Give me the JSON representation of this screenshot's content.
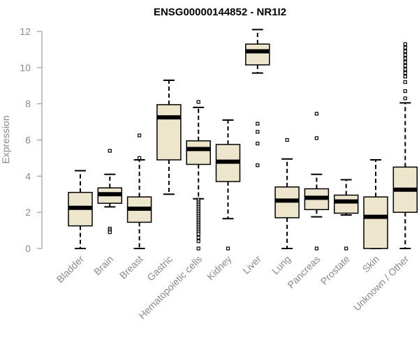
{
  "chart_data": {
    "type": "boxplot",
    "title": "ENSG00000144852 - NR1I2",
    "xlabel": "",
    "ylabel": "Expression",
    "ylim": [
      0,
      12
    ],
    "yticks": [
      0,
      2,
      4,
      6,
      8,
      10,
      12
    ],
    "grid": false,
    "colors": {
      "box_fill": "#ede6cc",
      "box_stroke": "#000000",
      "axis": "#8a8a8a"
    },
    "categories": [
      "Bladder",
      "Brain",
      "Breast",
      "Gastric",
      "Hematopoietic cells",
      "Kidney",
      "Liver",
      "Lung",
      "Pancreas",
      "Prostate",
      "Skin",
      "Unknown / Other"
    ],
    "boxes": [
      {
        "name": "Bladder",
        "min": 0,
        "q1": 1.25,
        "median": 2.25,
        "q3": 3.1,
        "max": 4.3,
        "outliers": []
      },
      {
        "name": "Brain",
        "min": 2.3,
        "q1": 2.5,
        "median": 3.0,
        "q3": 3.35,
        "max": 4.1,
        "outliers": [
          5.4,
          1.1,
          1.0,
          0.9
        ]
      },
      {
        "name": "Breast",
        "min": 0,
        "q1": 1.45,
        "median": 2.2,
        "q3": 2.85,
        "max": 4.9,
        "outliers": [
          6.25,
          5.0
        ]
      },
      {
        "name": "Gastric",
        "min": 3.0,
        "q1": 4.9,
        "median": 7.25,
        "q3": 7.95,
        "max": 9.3,
        "outliers": []
      },
      {
        "name": "Hematopoietic cells",
        "min": 2.75,
        "q1": 4.65,
        "median": 5.5,
        "q3": 5.95,
        "max": 7.8,
        "outliers": [
          8.1,
          2.7,
          2.6,
          2.5,
          2.4,
          2.3,
          2.2,
          2.1,
          2.0,
          1.9,
          1.8,
          1.7,
          1.6,
          1.5,
          1.4,
          1.3,
          1.2,
          1.1,
          1.0,
          0.9,
          0.8,
          0.6,
          0.4,
          0.0
        ]
      },
      {
        "name": "Kidney",
        "min": 1.65,
        "q1": 3.7,
        "median": 4.8,
        "q3": 5.75,
        "max": 7.1,
        "outliers": [
          0.0
        ]
      },
      {
        "name": "Liver",
        "min": 9.7,
        "q1": 10.15,
        "median": 10.9,
        "q3": 11.3,
        "max": 12.1,
        "outliers": [
          6.9,
          6.45,
          5.8,
          4.6
        ]
      },
      {
        "name": "Lung",
        "min": 0,
        "q1": 1.7,
        "median": 2.65,
        "q3": 3.4,
        "max": 4.95,
        "outliers": [
          6.0
        ]
      },
      {
        "name": "Pancreas",
        "min": 1.75,
        "q1": 2.15,
        "median": 2.8,
        "q3": 3.3,
        "max": 4.1,
        "outliers": [
          7.45,
          6.1,
          0.0
        ]
      },
      {
        "name": "Prostate",
        "min": 1.85,
        "q1": 1.95,
        "median": 2.6,
        "q3": 2.95,
        "max": 3.8,
        "outliers": [
          0.0
        ]
      },
      {
        "name": "Skin",
        "min": 0,
        "q1": 0,
        "median": 1.75,
        "q3": 2.85,
        "max": 4.9,
        "outliers": []
      },
      {
        "name": "Unknown / Other",
        "min": 0,
        "q1": 2.0,
        "median": 3.25,
        "q3": 4.5,
        "max": 8.05,
        "outliers": [
          8.3,
          8.7,
          9.2,
          9.5,
          9.7,
          9.9,
          10.1,
          10.3,
          10.5,
          10.7,
          10.9,
          11.1,
          11.3
        ]
      }
    ]
  }
}
